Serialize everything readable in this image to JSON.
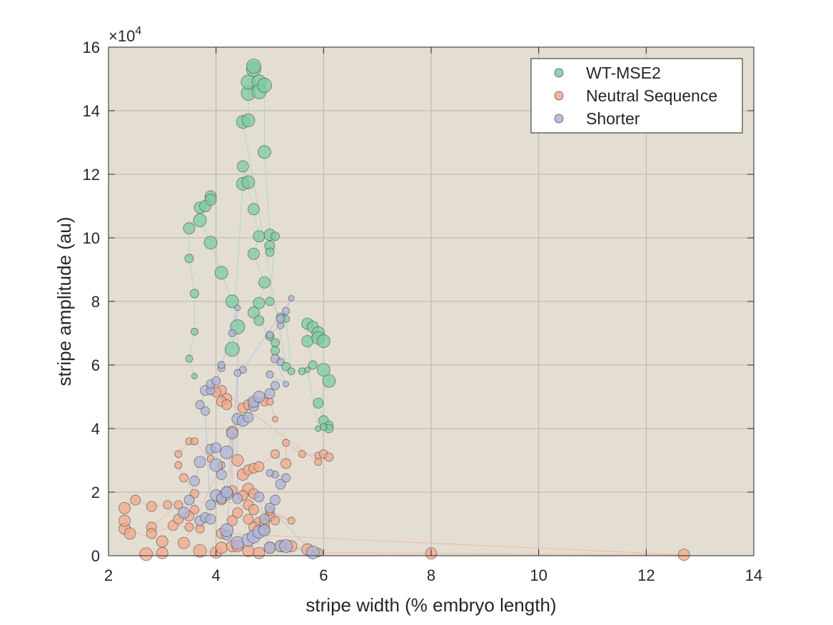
{
  "chart_data": {
    "type": "scatter",
    "xlabel": "stripe width (% embryo length)",
    "ylabel": "stripe amplitude (au)",
    "y_exponent": {
      "base": "×10",
      "power": "4"
    },
    "xlim": [
      2,
      14
    ],
    "ylim": [
      0,
      160000
    ],
    "xticks": [
      "2",
      "4",
      "6",
      "8",
      "10",
      "12",
      "14"
    ],
    "yticks": [
      "0",
      "2",
      "4",
      "6",
      "8",
      "10",
      "12",
      "14",
      "16"
    ],
    "grid": true,
    "legend_position": "top-right",
    "background": "#e3ddd2",
    "series": [
      {
        "name": "WT-MSE2",
        "color": "#7ccba2",
        "line_color": "#a8d8bf",
        "points": [
          [
            3.6,
            56500,
            4
          ],
          [
            3.5,
            62000,
            5
          ],
          [
            3.6,
            70500,
            5
          ],
          [
            3.6,
            82500,
            6
          ],
          [
            3.5,
            93500,
            6
          ],
          [
            3.5,
            103000,
            8
          ],
          [
            3.7,
            109500,
            8
          ],
          [
            3.8,
            110000,
            8
          ],
          [
            3.9,
            113000,
            8
          ],
          [
            3.9,
            112000,
            8
          ],
          [
            3.7,
            105500,
            9
          ],
          [
            3.9,
            98500,
            9
          ],
          [
            4.1,
            89000,
            9
          ],
          [
            4.3,
            80000,
            9
          ],
          [
            4.4,
            72000,
            10
          ],
          [
            4.3,
            65000,
            10
          ],
          [
            4.5,
            117000,
            9
          ],
          [
            4.6,
            117500,
            9
          ],
          [
            4.5,
            122500,
            8
          ],
          [
            4.7,
            109000,
            8
          ],
          [
            4.8,
            100500,
            8
          ],
          [
            4.7,
            95000,
            8
          ],
          [
            4.9,
            86000,
            8
          ],
          [
            4.8,
            79500,
            8
          ],
          [
            4.7,
            76500,
            8
          ],
          [
            4.8,
            74000,
            7
          ],
          [
            5.0,
            69000,
            6
          ],
          [
            5.1,
            67000,
            6
          ],
          [
            5.1,
            64500,
            6
          ],
          [
            5.3,
            59500,
            6
          ],
          [
            4.5,
            136500,
            9
          ],
          [
            4.6,
            137000,
            9
          ],
          [
            4.6,
            145500,
            10
          ],
          [
            4.6,
            149000,
            10
          ],
          [
            4.7,
            153000,
            10
          ],
          [
            4.7,
            154000,
            10
          ],
          [
            4.8,
            149000,
            10
          ],
          [
            4.8,
            146000,
            10
          ],
          [
            4.9,
            148000,
            10
          ],
          [
            4.9,
            127000,
            9
          ],
          [
            5.0,
            101000,
            8
          ],
          [
            5.0,
            97500,
            7
          ],
          [
            5.0,
            95500,
            6
          ],
          [
            5.1,
            100500,
            6
          ],
          [
            5.0,
            80000,
            6
          ],
          [
            5.2,
            75000,
            6
          ],
          [
            5.3,
            74500,
            5
          ],
          [
            5.4,
            58000,
            5
          ],
          [
            5.6,
            58000,
            5
          ],
          [
            5.8,
            60000,
            6
          ],
          [
            5.7,
            67500,
            8
          ],
          [
            5.7,
            73000,
            8
          ],
          [
            5.8,
            72000,
            8
          ],
          [
            5.9,
            70000,
            9
          ],
          [
            5.9,
            68500,
            9
          ],
          [
            6.0,
            67500,
            9
          ],
          [
            6.0,
            58500,
            9
          ],
          [
            6.1,
            55000,
            9
          ],
          [
            5.9,
            48000,
            7
          ],
          [
            6.0,
            42500,
            7
          ],
          [
            6.1,
            41000,
            6
          ],
          [
            6.1,
            40000,
            6
          ],
          [
            6.0,
            40500,
            5
          ],
          [
            5.9,
            40000,
            4
          ],
          [
            5.7,
            58500,
            4
          ]
        ]
      },
      {
        "name": "Neutral Sequence",
        "color": "#f2a98b",
        "line_color": "#ecb9a3",
        "points": [
          [
            2.7,
            500,
            9
          ],
          [
            3.0,
            800,
            8
          ],
          [
            3.0,
            4500,
            8
          ],
          [
            2.3,
            8500,
            8
          ],
          [
            2.4,
            7000,
            8
          ],
          [
            2.3,
            11000,
            8
          ],
          [
            2.3,
            15000,
            8
          ],
          [
            2.5,
            17500,
            7
          ],
          [
            2.8,
            15500,
            7
          ],
          [
            3.1,
            16000,
            6
          ],
          [
            3.3,
            16000,
            6
          ],
          [
            2.8,
            9000,
            7
          ],
          [
            2.8,
            7000,
            7
          ],
          [
            3.2,
            9500,
            7
          ],
          [
            3.5,
            9000,
            6
          ],
          [
            3.7,
            8500,
            6
          ],
          [
            3.3,
            11500,
            7
          ],
          [
            3.5,
            12500,
            7
          ],
          [
            3.6,
            14500,
            6
          ],
          [
            3.6,
            19500,
            6
          ],
          [
            3.4,
            24500,
            6
          ],
          [
            3.3,
            28500,
            5
          ],
          [
            3.3,
            32000,
            5
          ],
          [
            3.5,
            36000,
            5
          ],
          [
            3.6,
            36000,
            5
          ],
          [
            3.9,
            30500,
            5
          ],
          [
            4.1,
            28500,
            5
          ],
          [
            3.4,
            4000,
            8
          ],
          [
            3.7,
            1500,
            9
          ],
          [
            4.0,
            1000,
            8
          ],
          [
            4.1,
            2500,
            8
          ],
          [
            4.3,
            3000,
            8
          ],
          [
            4.4,
            3000,
            8
          ],
          [
            4.6,
            1500,
            8
          ],
          [
            4.8,
            800,
            8
          ],
          [
            5.0,
            2500,
            8
          ],
          [
            5.2,
            3000,
            8
          ],
          [
            5.4,
            3000,
            8
          ],
          [
            5.7,
            2000,
            8
          ],
          [
            5.9,
            1000,
            6
          ],
          [
            8.0,
            700,
            8
          ],
          [
            12.7,
            300,
            8
          ],
          [
            4.1,
            7000,
            7
          ],
          [
            4.3,
            11000,
            7
          ],
          [
            4.4,
            13500,
            7
          ],
          [
            4.6,
            16000,
            7
          ],
          [
            4.6,
            21000,
            8
          ],
          [
            4.5,
            19000,
            7
          ],
          [
            4.7,
            19500,
            7
          ],
          [
            4.7,
            14500,
            7
          ],
          [
            4.8,
            10500,
            7
          ],
          [
            4.6,
            11500,
            7
          ],
          [
            4.7,
            9000,
            7
          ],
          [
            4.9,
            8000,
            7
          ],
          [
            4.9,
            10000,
            7
          ],
          [
            5.0,
            12500,
            7
          ],
          [
            5.1,
            11000,
            6
          ],
          [
            5.0,
            14000,
            6
          ],
          [
            5.4,
            11000,
            5
          ],
          [
            4.1,
            17500,
            7
          ],
          [
            4.1,
            18500,
            7
          ],
          [
            4.3,
            20500,
            7
          ],
          [
            4.3,
            39000,
            8
          ],
          [
            4.4,
            30000,
            8
          ],
          [
            4.5,
            25500,
            8
          ],
          [
            4.6,
            27000,
            7
          ],
          [
            4.7,
            27500,
            7
          ],
          [
            4.8,
            28000,
            7
          ],
          [
            5.1,
            32000,
            6
          ],
          [
            5.3,
            29000,
            7
          ],
          [
            5.3,
            35500,
            5
          ],
          [
            5.6,
            32000,
            5
          ],
          [
            5.9,
            31500,
            5
          ],
          [
            6.0,
            32000,
            6
          ],
          [
            6.1,
            31000,
            6
          ],
          [
            5.9,
            29500,
            5
          ],
          [
            4.1,
            52000,
            7
          ],
          [
            4.0,
            51500,
            7
          ],
          [
            4.2,
            49500,
            7
          ],
          [
            4.1,
            48500,
            7
          ],
          [
            4.2,
            47500,
            7
          ],
          [
            4.5,
            46500,
            7
          ],
          [
            4.6,
            47500,
            7
          ],
          [
            4.7,
            48000,
            7
          ],
          [
            4.9,
            48500,
            6
          ],
          [
            5.0,
            48500,
            5
          ],
          [
            5.1,
            43000,
            4
          ]
        ]
      },
      {
        "name": "Shorter",
        "color": "#adb3d6",
        "line_color": "#b9bfdc",
        "points": [
          [
            3.4,
            13500,
            8
          ],
          [
            3.5,
            17500,
            7
          ],
          [
            3.6,
            23500,
            7
          ],
          [
            3.7,
            29500,
            8
          ],
          [
            3.9,
            33500,
            7
          ],
          [
            4.0,
            34000,
            7
          ],
          [
            4.0,
            28500,
            9
          ],
          [
            4.1,
            25500,
            7
          ],
          [
            4.2,
            19500,
            9
          ],
          [
            4.0,
            19000,
            8
          ],
          [
            4.1,
            18000,
            7
          ],
          [
            3.9,
            16000,
            7
          ],
          [
            3.7,
            11000,
            7
          ],
          [
            3.8,
            12000,
            7
          ],
          [
            3.9,
            11500,
            7
          ],
          [
            3.8,
            45500,
            6
          ],
          [
            3.7,
            47500,
            6
          ],
          [
            3.8,
            52000,
            7
          ],
          [
            3.9,
            52000,
            6
          ],
          [
            3.9,
            54000,
            6
          ],
          [
            4.0,
            55000,
            6
          ],
          [
            4.1,
            59000,
            5
          ],
          [
            4.1,
            60000,
            5
          ],
          [
            4.3,
            70000,
            5
          ],
          [
            4.4,
            78000,
            4
          ],
          [
            4.4,
            18000,
            7
          ],
          [
            4.2,
            20000,
            8
          ],
          [
            4.3,
            38500,
            8
          ],
          [
            4.2,
            32500,
            9
          ],
          [
            4.4,
            43000,
            8
          ],
          [
            4.5,
            42500,
            8
          ],
          [
            4.6,
            43500,
            7
          ],
          [
            4.7,
            47000,
            7
          ],
          [
            4.7,
            48500,
            8
          ],
          [
            4.8,
            50000,
            8
          ],
          [
            5.0,
            51000,
            7
          ],
          [
            5.1,
            53500,
            6
          ],
          [
            5.0,
            57000,
            5
          ],
          [
            5.3,
            54000,
            4
          ],
          [
            5.1,
            62000,
            6
          ],
          [
            5.2,
            61000,
            5
          ],
          [
            5.0,
            69500,
            5
          ],
          [
            5.2,
            72500,
            5
          ],
          [
            5.2,
            74500,
            6
          ],
          [
            5.3,
            77000,
            5
          ],
          [
            5.4,
            81000,
            4
          ],
          [
            4.5,
            58500,
            5
          ],
          [
            4.4,
            57500,
            5
          ],
          [
            4.2,
            6500,
            7
          ],
          [
            4.2,
            8000,
            9
          ],
          [
            4.4,
            4000,
            9
          ],
          [
            4.6,
            5000,
            9
          ],
          [
            4.7,
            6000,
            9
          ],
          [
            4.8,
            7500,
            9
          ],
          [
            4.9,
            8000,
            8
          ],
          [
            5.0,
            2500,
            8
          ],
          [
            5.2,
            3000,
            8
          ],
          [
            5.3,
            3000,
            9
          ],
          [
            5.8,
            1000,
            9
          ],
          [
            4.8,
            18500,
            7
          ],
          [
            4.9,
            11500,
            7
          ],
          [
            5.0,
            15000,
            7
          ],
          [
            5.1,
            17500,
            7
          ],
          [
            5.2,
            22500,
            7
          ],
          [
            5.3,
            24500,
            6
          ],
          [
            5.1,
            25500,
            5
          ],
          [
            5.0,
            26000,
            5
          ]
        ]
      }
    ]
  }
}
